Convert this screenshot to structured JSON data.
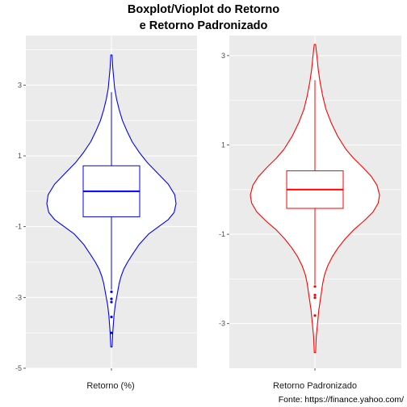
{
  "title_lines": [
    "Boxplot/Vioplot do Retorno",
    "e Retorno Padronizado"
  ],
  "caption": "Fonte: https://finance.yahoo.com/",
  "colors": {
    "panel_bg": "#ebebeb",
    "grid": "#ffffff",
    "left": "#0000ff",
    "right": "#ff0000"
  },
  "chart_data": [
    {
      "type": "violin+box",
      "xlabel": "Retorno (%)",
      "ylim": [
        -5.0,
        4.4
      ],
      "yticks": [
        3,
        1,
        -1,
        -3,
        -5
      ],
      "ytick_labels": [
        "3",
        "1",
        "-1",
        "-3",
        "-5"
      ],
      "color": "#0000ff",
      "box": {
        "q1": -0.72,
        "median": 0.0,
        "q3": 0.72,
        "whisker_low": -2.78,
        "whisker_high": 2.8
      },
      "outliers": [
        -2.84,
        -3.04,
        -3.13,
        -3.55,
        -4.0
      ],
      "violin": {
        "min": -4.4,
        "max": 3.85,
        "profile": [
          [
            -4.4,
            0.01
          ],
          [
            -4.0,
            0.02
          ],
          [
            -3.5,
            0.04
          ],
          [
            -3.2,
            0.06
          ],
          [
            -3.0,
            0.08
          ],
          [
            -2.8,
            0.1
          ],
          [
            -2.6,
            0.12
          ],
          [
            -2.4,
            0.15
          ],
          [
            -2.2,
            0.19
          ],
          [
            -2.0,
            0.25
          ],
          [
            -1.8,
            0.32
          ],
          [
            -1.5,
            0.43
          ],
          [
            -1.2,
            0.58
          ],
          [
            -1.0,
            0.73
          ],
          [
            -0.8,
            0.88
          ],
          [
            -0.6,
            0.97
          ],
          [
            -0.35,
            1.0
          ],
          [
            -0.1,
            0.98
          ],
          [
            0.2,
            0.88
          ],
          [
            0.5,
            0.72
          ],
          [
            0.8,
            0.56
          ],
          [
            1.1,
            0.43
          ],
          [
            1.4,
            0.32
          ],
          [
            1.7,
            0.24
          ],
          [
            2.0,
            0.17
          ],
          [
            2.3,
            0.12
          ],
          [
            2.6,
            0.08
          ],
          [
            2.9,
            0.05
          ],
          [
            3.2,
            0.035
          ],
          [
            3.5,
            0.02
          ],
          [
            3.85,
            0.01
          ]
        ]
      }
    },
    {
      "type": "violin+box",
      "xlabel": "Retorno Padronizado",
      "ylim": [
        -4.0,
        3.45
      ],
      "yticks": [
        3,
        1,
        -1,
        -3
      ],
      "ytick_labels": [
        "3",
        "1",
        "-1",
        "-3"
      ],
      "color": "#ff0000",
      "box": {
        "q1": -0.42,
        "median": 0.0,
        "q3": 0.42,
        "whisker_low": -2.13,
        "whisker_high": 2.45
      },
      "outliers": [
        -2.17,
        -2.36,
        -2.42,
        -2.82
      ],
      "violin": {
        "min": -3.65,
        "max": 3.25,
        "profile": [
          [
            -3.65,
            0.01
          ],
          [
            -3.3,
            0.02
          ],
          [
            -3.0,
            0.04
          ],
          [
            -2.7,
            0.06
          ],
          [
            -2.5,
            0.08
          ],
          [
            -2.3,
            0.1
          ],
          [
            -2.1,
            0.12
          ],
          [
            -1.9,
            0.15
          ],
          [
            -1.7,
            0.2
          ],
          [
            -1.5,
            0.27
          ],
          [
            -1.3,
            0.36
          ],
          [
            -1.1,
            0.47
          ],
          [
            -0.9,
            0.6
          ],
          [
            -0.7,
            0.76
          ],
          [
            -0.5,
            0.9
          ],
          [
            -0.3,
            0.98
          ],
          [
            -0.12,
            1.0
          ],
          [
            0.1,
            0.96
          ],
          [
            0.3,
            0.87
          ],
          [
            0.5,
            0.74
          ],
          [
            0.7,
            0.6
          ],
          [
            0.9,
            0.48
          ],
          [
            1.2,
            0.35
          ],
          [
            1.5,
            0.25
          ],
          [
            1.8,
            0.17
          ],
          [
            2.1,
            0.12
          ],
          [
            2.4,
            0.08
          ],
          [
            2.7,
            0.05
          ],
          [
            3.0,
            0.03
          ],
          [
            3.25,
            0.01
          ]
        ]
      }
    }
  ]
}
